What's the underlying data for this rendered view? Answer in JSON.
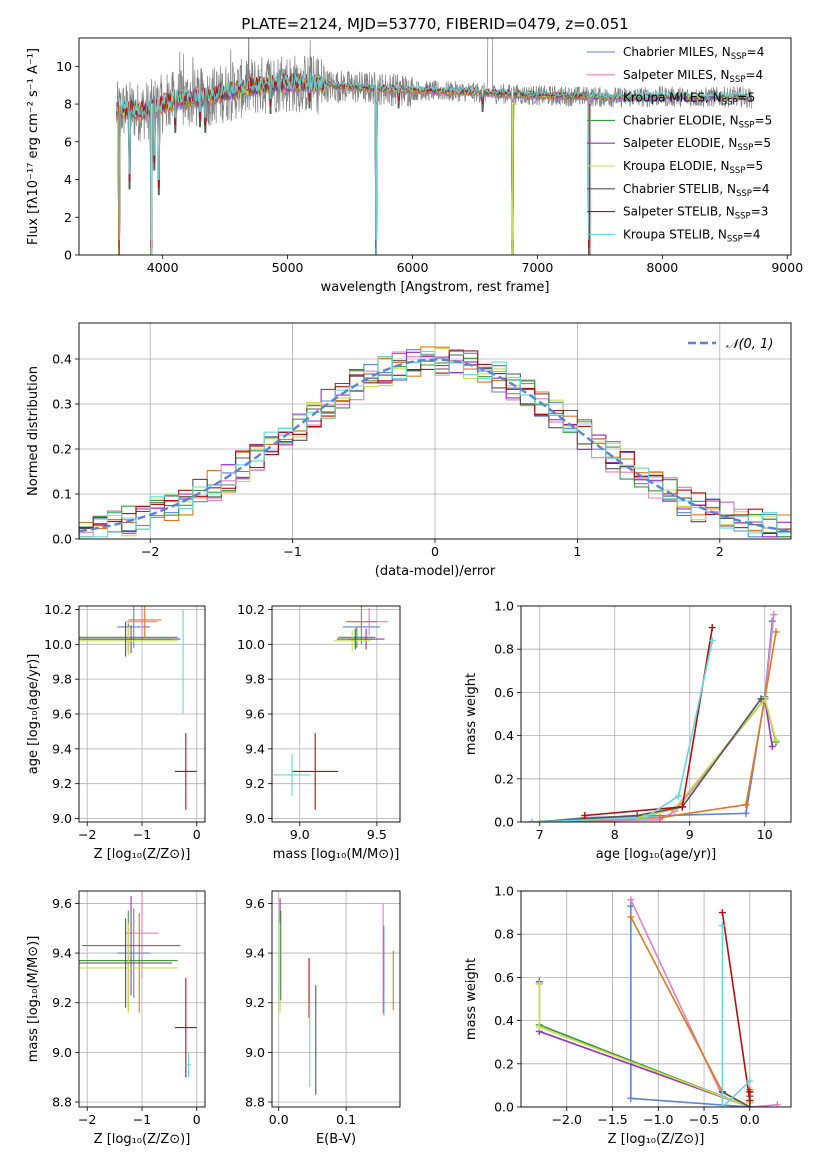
{
  "title": "PLATE=2124, MJD=53770, FIBERID=0479, z=0.051",
  "colors": {
    "chabrier_miles": "#5b84d6",
    "salpeter_miles": "#e67fc0",
    "kroupa_miles": "#e0781e",
    "chabrier_elodie": "#3d9a3d",
    "salpeter_elodie": "#9b2fc2",
    "kroupa_elodie": "#c9e04a",
    "chabrier_stelib": "#555555",
    "salpeter_stelib": "#b01010",
    "kroupa_stelib": "#66d9d9",
    "data": "#808080",
    "normal": "#5b84d6"
  },
  "chart_data": [
    {
      "id": "spectrum",
      "type": "line",
      "xlabel": "wavelength [Angstrom, rest frame]",
      "ylabel": "Flux [fλ10⁻¹⁷ erg cm⁻² s⁻¹ A⁻¹]",
      "xlim": [
        3330,
        9030
      ],
      "ylim": [
        0,
        11.5
      ],
      "xticks": [
        4000,
        5000,
        6000,
        7000,
        8000,
        9000
      ],
      "yticks": [
        0,
        2,
        4,
        6,
        8,
        10
      ],
      "legend_position": "upper-right",
      "legend": [
        {
          "label": "Chabrier MILES, N",
          "sub": "SSP",
          "n": "=4",
          "color_key": "chabrier_miles"
        },
        {
          "label": "Salpeter MILES, N",
          "sub": "SSP",
          "n": "=4",
          "color_key": "salpeter_miles"
        },
        {
          "label": "Kroupa MILES, N",
          "sub": "SSP",
          "n": "=5",
          "color_key": "kroupa_miles"
        },
        {
          "label": "Chabrier ELODIE, N",
          "sub": "SSP",
          "n": "=5",
          "color_key": "chabrier_elodie"
        },
        {
          "label": "Salpeter ELODIE, N",
          "sub": "SSP",
          "n": "=5",
          "color_key": "salpeter_elodie"
        },
        {
          "label": "Kroupa ELODIE, N",
          "sub": "SSP",
          "n": "=5",
          "color_key": "kroupa_elodie"
        },
        {
          "label": "Chabrier STELIB, N",
          "sub": "SSP",
          "n": "=4",
          "color_key": "chabrier_stelib"
        },
        {
          "label": "Salpeter STELIB, N",
          "sub": "SSP",
          "n": "=3",
          "color_key": "salpeter_stelib"
        },
        {
          "label": "Kroupa STELIB, N",
          "sub": "SSP",
          "n": "=4",
          "color_key": "kroupa_stelib"
        }
      ],
      "continuum": [
        [
          3630,
          7.6
        ],
        [
          3700,
          7.7
        ],
        [
          3800,
          7.6
        ],
        [
          3900,
          7.7
        ],
        [
          4000,
          8.0
        ],
        [
          4100,
          8.2
        ],
        [
          4300,
          8.3
        ],
        [
          4500,
          8.6
        ],
        [
          4700,
          8.9
        ],
        [
          4900,
          9.1
        ],
        [
          5100,
          9.1
        ],
        [
          5300,
          9.0
        ],
        [
          5500,
          8.9
        ],
        [
          5800,
          8.8
        ],
        [
          6100,
          8.7
        ],
        [
          6400,
          8.65
        ],
        [
          6700,
          8.55
        ],
        [
          7000,
          8.45
        ],
        [
          7400,
          8.4
        ],
        [
          7700,
          8.35
        ],
        [
          8000,
          8.4
        ],
        [
          8300,
          8.35
        ],
        [
          8600,
          8.4
        ],
        [
          8720,
          8.3
        ]
      ],
      "absorption_features": [
        [
          3650,
          0.0
        ],
        [
          3735,
          3.5
        ],
        [
          3910,
          0.0
        ],
        [
          3933,
          4.5
        ],
        [
          3968,
          3.2
        ],
        [
          4102,
          6.5
        ],
        [
          4300,
          6.8
        ],
        [
          4340,
          6.5
        ],
        [
          4861,
          7.5
        ],
        [
          5175,
          7.8
        ],
        [
          5710,
          0.0
        ],
        [
          5890,
          7.8
        ],
        [
          6563,
          7.6
        ],
        [
          6800,
          0.0
        ],
        [
          7410,
          0.0
        ]
      ]
    },
    {
      "id": "residual-histogram",
      "type": "histogram",
      "xlabel": "(data-model)/error",
      "ylabel": "Normed distribution",
      "xlim": [
        -2.5,
        2.5
      ],
      "ylim": [
        0,
        0.48
      ],
      "xticks": [
        -2,
        -1,
        0,
        1,
        2
      ],
      "yticks": [
        0.0,
        0.1,
        0.2,
        0.3,
        0.4
      ],
      "legend_position": "upper-right",
      "legend_label": "𝒩(0, 1)",
      "bin_width": 0.1
    },
    {
      "id": "age-vs-z",
      "type": "errorbar",
      "xlabel": "Z [log₁₀(Z/Z⊙)]",
      "ylabel": "age  [log₁₀(age/yr)]",
      "xlim": [
        -2.15,
        0.15
      ],
      "ylim": [
        8.98,
        10.22
      ],
      "xticks": [
        -2,
        -1,
        0
      ],
      "yticks": [
        9.0,
        9.2,
        9.4,
        9.6,
        9.8,
        10.0,
        10.2
      ],
      "points": [
        {
          "c": "chabrier_miles",
          "x": -1.15,
          "xe": 0.3,
          "y": 10.1,
          "ye": 0.12
        },
        {
          "c": "salpeter_miles",
          "x": -1.0,
          "xe": 0.28,
          "y": 10.13,
          "ye": 0.1
        },
        {
          "c": "kroupa_miles",
          "x": -0.95,
          "xe": 0.3,
          "y": 10.14,
          "ye": 0.1
        },
        {
          "c": "chabrier_elodie",
          "x": -1.25,
          "xe": 0.9,
          "y": 10.04,
          "ye": 0.08
        },
        {
          "c": "salpeter_elodie",
          "x": -1.2,
          "xe": 0.9,
          "y": 10.03,
          "ye": 0.08
        },
        {
          "c": "kroupa_elodie",
          "x": -1.25,
          "xe": 0.9,
          "y": 10.02,
          "ye": 0.08
        },
        {
          "c": "chabrier_stelib",
          "x": -1.3,
          "xe": 0.85,
          "y": 10.03,
          "ye": 0.1
        },
        {
          "c": "salpeter_stelib",
          "x": -0.2,
          "xe": 0.2,
          "y": 9.27,
          "ye": 0.22
        },
        {
          "c": "kroupa_stelib",
          "x": -0.25,
          "xe": 0.0,
          "y": 9.9,
          "ye": 0.3
        }
      ]
    },
    {
      "id": "age-vs-mass",
      "type": "errorbar",
      "xlabel": "mass [log₁₀(M/M⊙)]",
      "ylabel": "",
      "xlim": [
        8.82,
        9.65
      ],
      "ylim": [
        8.98,
        10.22
      ],
      "xticks": [
        9.0,
        9.5
      ],
      "yticks": [
        9.0,
        9.2,
        9.4,
        9.6,
        9.8,
        10.0,
        10.2
      ],
      "points": [
        {
          "c": "chabrier_miles",
          "x": 9.4,
          "xe": 0.12,
          "y": 10.1,
          "ye": 0.1
        },
        {
          "c": "salpeter_miles",
          "x": 9.45,
          "xe": 0.12,
          "y": 10.13,
          "ye": 0.08
        },
        {
          "c": "kroupa_miles",
          "x": 9.4,
          "xe": 0.1,
          "y": 10.13,
          "ye": 0.1
        },
        {
          "c": "chabrier_elodie",
          "x": 9.37,
          "xe": 0.12,
          "y": 10.04,
          "ye": 0.06
        },
        {
          "c": "salpeter_elodie",
          "x": 9.43,
          "xe": 0.12,
          "y": 10.03,
          "ye": 0.06
        },
        {
          "c": "kroupa_elodie",
          "x": 9.34,
          "xe": 0.12,
          "y": 10.02,
          "ye": 0.06
        },
        {
          "c": "chabrier_stelib",
          "x": 9.36,
          "xe": 0.12,
          "y": 10.03,
          "ye": 0.06
        },
        {
          "c": "salpeter_stelib",
          "x": 9.1,
          "xe": 0.15,
          "y": 9.27,
          "ye": 0.22
        },
        {
          "c": "kroupa_stelib",
          "x": 8.95,
          "xe": 0.12,
          "y": 9.25,
          "ye": 0.12
        }
      ]
    },
    {
      "id": "weight-vs-age",
      "type": "line",
      "xlabel": "age  [log₁₀(age/yr)]",
      "ylabel": "mass weight",
      "xlim": [
        6.75,
        10.35
      ],
      "ylim": [
        0,
        1.0
      ],
      "xticks": [
        7,
        8,
        9,
        10
      ],
      "yticks": [
        0.0,
        0.2,
        0.4,
        0.6,
        0.8,
        1.0
      ],
      "series": [
        {
          "c": "chabrier_miles",
          "pts": [
            [
              7.0,
              0.0
            ],
            [
              7.6,
              0.02
            ],
            [
              9.75,
              0.04
            ],
            [
              10.0,
              0.58
            ],
            [
              10.1,
              0.93
            ]
          ]
        },
        {
          "c": "salpeter_miles",
          "pts": [
            [
              7.0,
              0.0
            ],
            [
              8.6,
              0.01
            ],
            [
              8.8,
              0.05
            ],
            [
              10.0,
              0.57
            ],
            [
              10.12,
              0.96
            ]
          ]
        },
        {
          "c": "kroupa_miles",
          "pts": [
            [
              7.0,
              0.0
            ],
            [
              8.6,
              0.02
            ],
            [
              9.75,
              0.08
            ],
            [
              10.0,
              0.57
            ],
            [
              10.15,
              0.88
            ]
          ]
        },
        {
          "c": "chabrier_elodie",
          "pts": [
            [
              7.0,
              0.0
            ],
            [
              8.3,
              0.02
            ],
            [
              8.8,
              0.06
            ],
            [
              10.0,
              0.57
            ],
            [
              10.15,
              0.37
            ]
          ]
        },
        {
          "c": "salpeter_elodie",
          "pts": [
            [
              7.0,
              0.0
            ],
            [
              8.3,
              0.02
            ],
            [
              8.8,
              0.06
            ],
            [
              10.0,
              0.57
            ],
            [
              10.1,
              0.35
            ]
          ]
        },
        {
          "c": "kroupa_elodie",
          "pts": [
            [
              7.0,
              0.0
            ],
            [
              8.3,
              0.02
            ],
            [
              8.8,
              0.06
            ],
            [
              10.0,
              0.57
            ],
            [
              10.15,
              0.38
            ]
          ]
        },
        {
          "c": "chabrier_stelib",
          "pts": [
            [
              6.9,
              0.0
            ],
            [
              8.3,
              0.03
            ],
            [
              8.9,
              0.07
            ],
            [
              9.95,
              0.57
            ]
          ]
        },
        {
          "c": "salpeter_stelib",
          "pts": [
            [
              7.6,
              0.03
            ],
            [
              8.9,
              0.07
            ],
            [
              9.3,
              0.9
            ]
          ]
        },
        {
          "c": "kroupa_stelib",
          "pts": [
            [
              6.9,
              0.0
            ],
            [
              8.4,
              0.02
            ],
            [
              8.85,
              0.12
            ],
            [
              9.3,
              0.84
            ]
          ]
        }
      ]
    },
    {
      "id": "mass-vs-z",
      "type": "errorbar",
      "xlabel": "Z [log₁₀(Z/Z⊙)]",
      "ylabel": "mass [log₁₀(M/M⊙)]",
      "xlim": [
        -2.15,
        0.15
      ],
      "ylim": [
        8.78,
        9.65
      ],
      "xticks": [
        -2,
        -1,
        0
      ],
      "yticks": [
        8.8,
        9.0,
        9.2,
        9.4,
        9.6
      ],
      "points": [
        {
          "c": "chabrier_miles",
          "x": -1.15,
          "xe": 0.3,
          "y": 9.4,
          "ye": 0.18
        },
        {
          "c": "salpeter_miles",
          "x": -1.0,
          "xe": 0.3,
          "y": 9.48,
          "ye": 0.18
        },
        {
          "c": "kroupa_miles",
          "x": -1.05,
          "xe": 0.3,
          "y": 9.36,
          "ye": 0.2
        },
        {
          "c": "chabrier_elodie",
          "x": -1.25,
          "xe": 0.9,
          "y": 9.37,
          "ye": 0.2
        },
        {
          "c": "salpeter_elodie",
          "x": -1.2,
          "xe": 0.9,
          "y": 9.43,
          "ye": 0.2
        },
        {
          "c": "kroupa_elodie",
          "x": -1.25,
          "xe": 0.9,
          "y": 9.34,
          "ye": 0.18
        },
        {
          "c": "chabrier_stelib",
          "x": -1.3,
          "xe": 0.85,
          "y": 9.36,
          "ye": 0.18
        },
        {
          "c": "salpeter_stelib",
          "x": -0.2,
          "xe": 0.2,
          "y": 9.1,
          "ye": 0.2
        },
        {
          "c": "kroupa_stelib",
          "x": -0.15,
          "xe": 0.05,
          "y": 8.95,
          "ye": 0.05
        }
      ]
    },
    {
      "id": "mass-vs-ebv",
      "type": "errorbar",
      "xlabel": "E(B-V)",
      "ylabel": "",
      "xlim": [
        -0.01,
        0.18
      ],
      "ylim": [
        8.78,
        9.65
      ],
      "xticks": [
        0.0,
        0.1
      ],
      "yticks": [
        8.8,
        9.0,
        9.2,
        9.4,
        9.6
      ],
      "points": [
        {
          "c": "salpeter_elodie",
          "x": 0.002,
          "xe": 0.0,
          "y": 9.45,
          "ye": 0.17
        },
        {
          "c": "kroupa_elodie",
          "x": 0.002,
          "xe": 0.0,
          "y": 9.34,
          "ye": 0.18
        },
        {
          "c": "chabrier_elodie",
          "x": 0.003,
          "xe": 0.0,
          "y": 9.39,
          "ye": 0.18
        },
        {
          "c": "salpeter_stelib",
          "x": 0.045,
          "xe": 0.0,
          "y": 9.26,
          "ye": 0.12
        },
        {
          "c": "kroupa_stelib",
          "x": 0.046,
          "xe": 0.0,
          "y": 9.03,
          "ye": 0.17
        },
        {
          "c": "chabrier_stelib",
          "x": 0.055,
          "xe": 0.0,
          "y": 9.05,
          "ye": 0.22
        },
        {
          "c": "salpeter_miles",
          "x": 0.155,
          "xe": 0.0,
          "y": 9.38,
          "ye": 0.22
        },
        {
          "c": "chabrier_miles",
          "x": 0.156,
          "xe": 0.0,
          "y": 9.33,
          "ye": 0.18
        },
        {
          "c": "kroupa_miles",
          "x": 0.17,
          "xe": 0.0,
          "y": 9.29,
          "ye": 0.12
        }
      ]
    },
    {
      "id": "weight-vs-z",
      "type": "line",
      "xlabel": "Z [log₁₀(Z/Z⊙)]",
      "ylabel": "mass weight",
      "xlim": [
        -2.5,
        0.45
      ],
      "ylim": [
        0,
        1.0
      ],
      "xticks": [
        -2.0,
        -1.5,
        -1.0,
        -0.5,
        0.0
      ],
      "yticks": [
        0.0,
        0.2,
        0.4,
        0.6,
        0.8,
        1.0
      ],
      "series": [
        {
          "c": "chabrier_miles",
          "pts": [
            [
              -1.3,
              0.93
            ],
            [
              -1.3,
              0.04
            ],
            [
              0.0,
              0.0
            ],
            [
              0.0,
              0.03
            ]
          ]
        },
        {
          "c": "salpeter_miles",
          "pts": [
            [
              -1.3,
              0.96
            ],
            [
              -0.3,
              0.05
            ],
            [
              0.0,
              0.0
            ],
            [
              0.3,
              0.01
            ]
          ]
        },
        {
          "c": "kroupa_miles",
          "pts": [
            [
              -1.3,
              0.88
            ],
            [
              -0.3,
              0.07
            ],
            [
              0.0,
              0.0
            ],
            [
              0.0,
              0.08
            ]
          ]
        },
        {
          "c": "chabrier_elodie",
          "pts": [
            [
              -2.3,
              0.57
            ],
            [
              -2.3,
              0.38
            ],
            [
              0.0,
              0.0
            ],
            [
              0.0,
              0.02
            ]
          ]
        },
        {
          "c": "salpeter_elodie",
          "pts": [
            [
              -2.3,
              0.58
            ],
            [
              -2.3,
              0.35
            ],
            [
              0.0,
              0.0
            ],
            [
              0.0,
              0.02
            ]
          ]
        },
        {
          "c": "kroupa_elodie",
          "pts": [
            [
              -2.3,
              0.57
            ],
            [
              -2.3,
              0.37
            ],
            [
              0.0,
              0.0
            ],
            [
              0.0,
              0.02
            ]
          ]
        },
        {
          "c": "chabrier_stelib",
          "pts": [
            [
              -0.3,
              0.07
            ],
            [
              0.0,
              0.0
            ],
            [
              0.0,
              0.05
            ]
          ]
        },
        {
          "c": "salpeter_stelib",
          "pts": [
            [
              -0.3,
              0.9
            ],
            [
              0.0,
              0.03
            ],
            [
              0.0,
              0.07
            ]
          ]
        },
        {
          "c": "kroupa_stelib",
          "pts": [
            [
              -0.3,
              0.84
            ],
            [
              -0.3,
              0.0
            ],
            [
              0.0,
              0.12
            ]
          ]
        }
      ]
    }
  ]
}
